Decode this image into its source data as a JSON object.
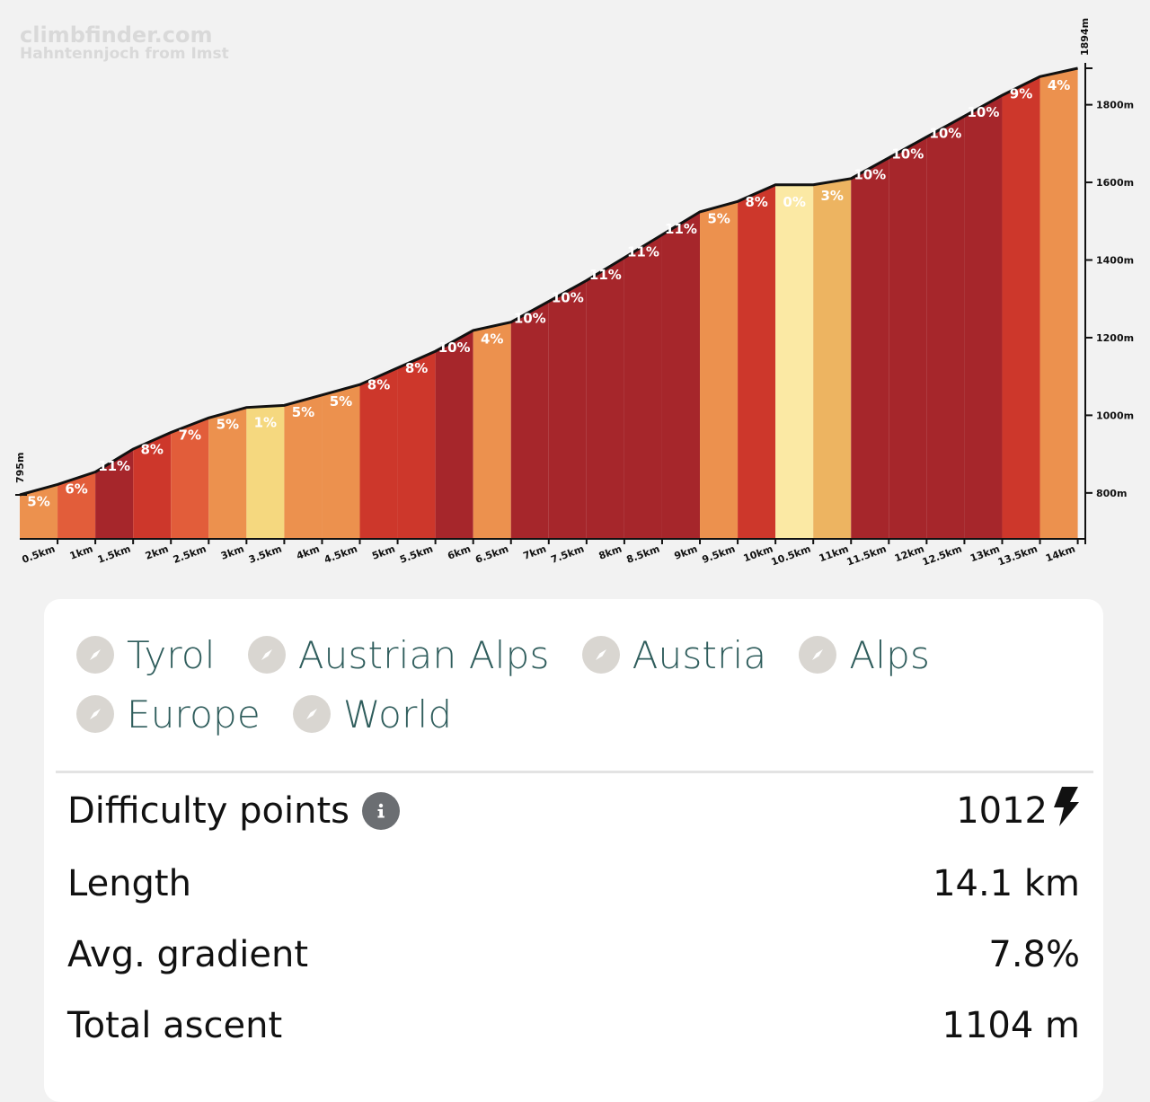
{
  "brand": {
    "site": "climbfinder.com",
    "climb_name": "Hahntennjoch from Imst"
  },
  "chart_data": {
    "type": "area",
    "title": "",
    "xlabel": "",
    "ylabel": "",
    "x_ticks": [
      "0.5km",
      "1km",
      "1.5km",
      "2km",
      "2.5km",
      "3km",
      "3.5km",
      "4km",
      "4.5km",
      "5km",
      "5.5km",
      "6km",
      "6.5km",
      "7km",
      "7.5km",
      "8km",
      "8.5km",
      "9km",
      "9.5km",
      "10km",
      "10.5km",
      "11km",
      "11.5km",
      "12km",
      "12.5km",
      "13km",
      "13.5km",
      "14km"
    ],
    "y_ticks": [
      "800m",
      "1000m",
      "1200m",
      "1400m",
      "1600m",
      "1800m"
    ],
    "y_tick_values": [
      800,
      1000,
      1200,
      1400,
      1600,
      1800
    ],
    "ylim": [
      690,
      1894
    ],
    "xlim_km": [
      0,
      14.1
    ],
    "start_elevation_label": "795m",
    "end_elevation_label": "1894m",
    "start_elevation": 795,
    "end_elevation": 1894,
    "segment_length_km": 0.5,
    "gradients": [
      5,
      6,
      11,
      8,
      7,
      5,
      1,
      5,
      5,
      8,
      8,
      10,
      4,
      10,
      10,
      11,
      11,
      11,
      5,
      8,
      0,
      3,
      10,
      10,
      10,
      10,
      9,
      4
    ],
    "gradient_labels": [
      "5%",
      "6%",
      "11%",
      "8%",
      "7%",
      "5%",
      "1%",
      "5%",
      "5%",
      "8%",
      "8%",
      "10%",
      "4%",
      "10%",
      "10%",
      "11%",
      "11%",
      "11%",
      "5%",
      "8%",
      "0%",
      "3%",
      "10%",
      "10%",
      "10%",
      "10%",
      "9%",
      "4%"
    ],
    "colors": {
      "g0_1": "#fbe9a4",
      "g1_2": "#f5d87f",
      "g3": "#edb461",
      "g4_6": "#ec914e",
      "g6_7": "#e25d3a",
      "g8_9": "#cd372b",
      "g10_plus": "#a6262b"
    }
  },
  "regions": [
    {
      "label": "Tyrol",
      "icon": "compass-icon"
    },
    {
      "label": "Austrian Alps",
      "icon": "compass-icon"
    },
    {
      "label": "Austria",
      "icon": "compass-icon"
    },
    {
      "label": "Alps",
      "icon": "compass-icon"
    },
    {
      "label": "Europe",
      "icon": "compass-icon"
    },
    {
      "label": "World",
      "icon": "compass-icon"
    }
  ],
  "stats": {
    "difficulty": {
      "label": "Difficulty points",
      "value": "1012",
      "icon": "bolt-icon"
    },
    "length": {
      "label": "Length",
      "value": "14.1 km"
    },
    "gradient": {
      "label": "Avg. gradient",
      "value": "7.8%"
    },
    "ascent": {
      "label": "Total ascent",
      "value": "1104 m"
    }
  }
}
